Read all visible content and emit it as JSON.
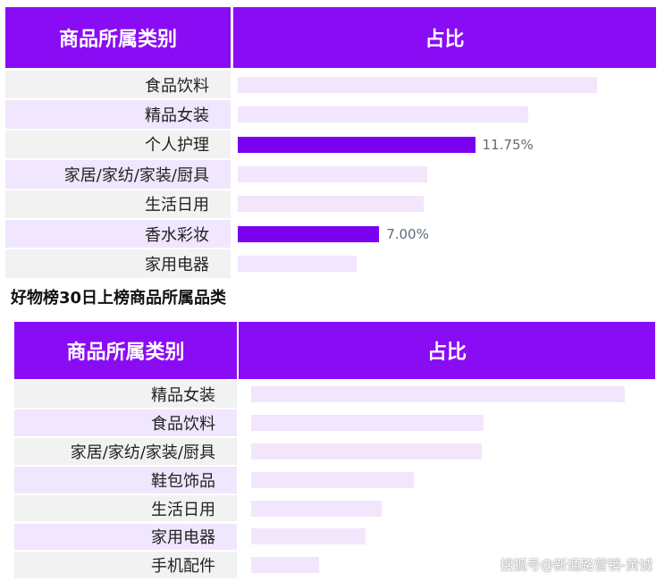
{
  "table1": {
    "header_category": "商品所属类别",
    "header_share": "占比"
  },
  "mid_title": "好物榜30日上榜商品所属品类",
  "table2": {
    "header_category": "商品所属类别",
    "header_share": "占比"
  },
  "watermark": "搜狐号@新通路营销-黄诚",
  "colors": {
    "header_bg": "#8a0cf5",
    "bar_highlight": "#7b00f0",
    "bar_light": "#f2e6fd",
    "row_gray": "#f2f2f2",
    "row_lavender": "#f0e6fd"
  },
  "chart_data": [
    {
      "type": "bar",
      "orientation": "horizontal",
      "columns": [
        "商品所属类别",
        "占比"
      ],
      "categories": [
        "食品饮料",
        "精品女装",
        "个人护理",
        "家居/家纺/家装/厨具",
        "生活日用",
        "香水彩妆",
        "家用电器"
      ],
      "values": [
        17.8,
        14.4,
        11.75,
        9.4,
        9.2,
        7.0,
        5.9
      ],
      "value_labels": [
        "",
        "",
        "11.75%",
        "",
        "",
        "7.00%",
        ""
      ],
      "highlighted": [
        false,
        false,
        true,
        false,
        false,
        true,
        false
      ],
      "unit": "%",
      "xlim": [
        0,
        20
      ]
    },
    {
      "type": "bar",
      "orientation": "horizontal",
      "title": "好物榜30日上榜商品所属品类",
      "columns": [
        "商品所属类别",
        "占比"
      ],
      "categories": [
        "精品女装",
        "食品饮料",
        "家居/家纺/家装/厨具",
        "鞋包饰品",
        "生活日用",
        "家用电器",
        "手机配件"
      ],
      "values": [
        20.9,
        13.0,
        12.9,
        9.1,
        7.3,
        6.4,
        3.8
      ],
      "value_labels": [
        "",
        "",
        "",
        "",
        "",
        "",
        ""
      ],
      "highlighted": [
        false,
        false,
        false,
        false,
        false,
        false,
        false
      ],
      "unit": "%",
      "xlim": [
        0,
        23
      ]
    }
  ]
}
